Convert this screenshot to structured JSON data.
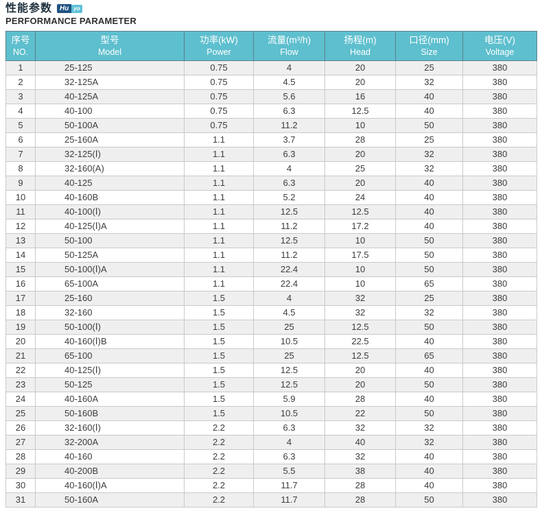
{
  "header": {
    "title_cn": "性能参数",
    "subtitle_en": "PERFORMANCE PARAMETER",
    "logo": {
      "part1": "Hu",
      "part2": "yo"
    }
  },
  "colors": {
    "table_header_bg": "#5ebfce",
    "table_header_divider": "#5a7f8b",
    "row_stripe": "#efefef",
    "cell_border": "#c9c9c9",
    "logo_dark_blue": "#1f5382",
    "logo_light_blue": "#5fc2d6"
  },
  "table": {
    "columns": [
      {
        "cn": "序号",
        "en": "NO."
      },
      {
        "cn": "型号",
        "en": "Model"
      },
      {
        "cn": "功率(kW)",
        "en": "Power"
      },
      {
        "cn": "流量(m³/h)",
        "en": "Flow"
      },
      {
        "cn": "扬程(m)",
        "en": "Head"
      },
      {
        "cn": "口径(mm)",
        "en": "Size"
      },
      {
        "cn": "电压(V)",
        "en": "Voltage"
      }
    ],
    "rows": [
      [
        "1",
        "25-125",
        "0.75",
        "4",
        "20",
        "25",
        "380"
      ],
      [
        "2",
        "32-125A",
        "0.75",
        "4.5",
        "20",
        "32",
        "380"
      ],
      [
        "3",
        "40-125A",
        "0.75",
        "5.6",
        "16",
        "40",
        "380"
      ],
      [
        "4",
        "40-100",
        "0.75",
        "6.3",
        "12.5",
        "40",
        "380"
      ],
      [
        "5",
        "50-100A",
        "0.75",
        "11.2",
        "10",
        "50",
        "380"
      ],
      [
        "6",
        "25-160A",
        "1.1",
        "3.7",
        "28",
        "25",
        "380"
      ],
      [
        "7",
        "32-125(Ⅰ)",
        "1.1",
        "6.3",
        "20",
        "32",
        "380"
      ],
      [
        "8",
        "32-160(A)",
        "1.1",
        "4",
        "25",
        "32",
        "380"
      ],
      [
        "9",
        "40-125",
        "1.1",
        "6.3",
        "20",
        "40",
        "380"
      ],
      [
        "10",
        "40-160B",
        "1.1",
        "5.2",
        "24",
        "40",
        "380"
      ],
      [
        "11",
        "40-100(Ⅰ)",
        "1.1",
        "12.5",
        "12.5",
        "40",
        "380"
      ],
      [
        "12",
        "40-125(Ⅰ)A",
        "1.1",
        "11.2",
        "17.2",
        "40",
        "380"
      ],
      [
        "13",
        "50-100",
        "1.1",
        "12.5",
        "10",
        "50",
        "380"
      ],
      [
        "14",
        "50-125A",
        "1.1",
        "11.2",
        "17.5",
        "50",
        "380"
      ],
      [
        "15",
        "50-100(Ⅰ)A",
        "1.1",
        "22.4",
        "10",
        "50",
        "380"
      ],
      [
        "16",
        "65-100A",
        "1.1",
        "22.4",
        "10",
        "65",
        "380"
      ],
      [
        "17",
        "25-160",
        "1.5",
        "4",
        "32",
        "25",
        "380"
      ],
      [
        "18",
        "32-160",
        "1.5",
        "4.5",
        "32",
        "32",
        "380"
      ],
      [
        "19",
        "50-100(Ⅰ)",
        "1.5",
        "25",
        "12.5",
        "50",
        "380"
      ],
      [
        "20",
        "40-160(Ⅰ)B",
        "1.5",
        "10.5",
        "22.5",
        "40",
        "380"
      ],
      [
        "21",
        "65-100",
        "1.5",
        "25",
        "12.5",
        "65",
        "380"
      ],
      [
        "22",
        "40-125(Ⅰ)",
        "1.5",
        "12.5",
        "20",
        "40",
        "380"
      ],
      [
        "23",
        "50-125",
        "1.5",
        "12.5",
        "20",
        "50",
        "380"
      ],
      [
        "24",
        "40-160A",
        "1.5",
        "5.9",
        "28",
        "40",
        "380"
      ],
      [
        "25",
        "50-160B",
        "1.5",
        "10.5",
        "22",
        "50",
        "380"
      ],
      [
        "26",
        "32-160(Ⅰ)",
        "2.2",
        "6.3",
        "32",
        "32",
        "380"
      ],
      [
        "27",
        "32-200A",
        "2.2",
        "4",
        "40",
        "32",
        "380"
      ],
      [
        "28",
        "40-160",
        "2.2",
        "6.3",
        "32",
        "40",
        "380"
      ],
      [
        "29",
        "40-200B",
        "2.2",
        "5.5",
        "38",
        "40",
        "380"
      ],
      [
        "30",
        "40-160(Ⅰ)A",
        "2.2",
        "11.7",
        "28",
        "40",
        "380"
      ],
      [
        "31",
        "50-160A",
        "2.2",
        "11.7",
        "28",
        "50",
        "380"
      ]
    ]
  }
}
